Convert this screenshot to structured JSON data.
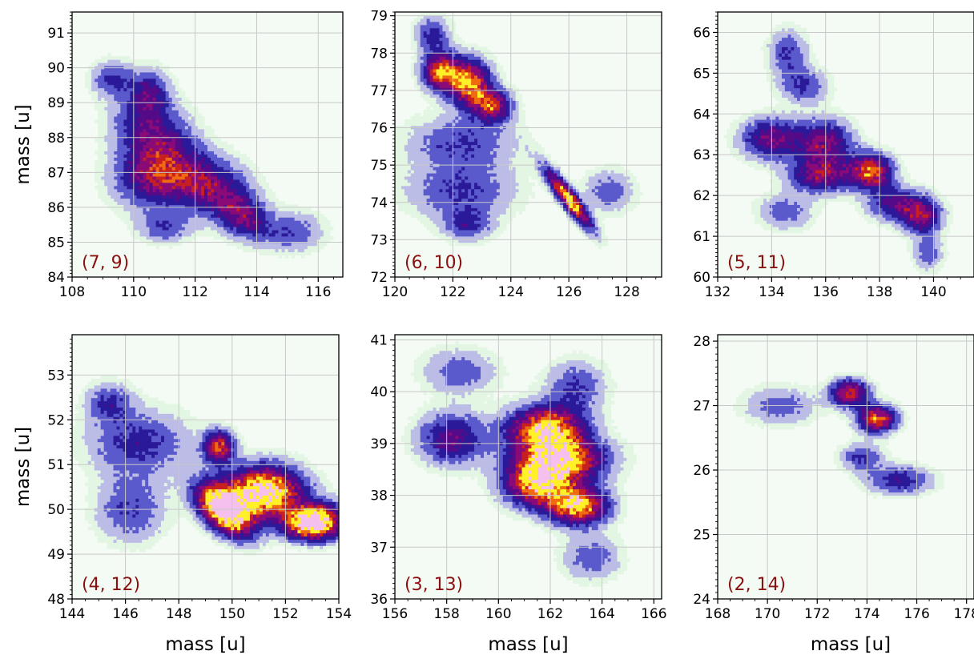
{
  "colors": {
    "panel_label": "#8b1010",
    "grid": "#c8c8c8",
    "background_haze": "#e6f7e6",
    "colormap": [
      "#e3f6e3",
      "#bcbde6",
      "#5a5acc",
      "#2a1a9a",
      "#550a88",
      "#8a0a78",
      "#c82020",
      "#f06a10",
      "#fff028",
      "#f5c0ee"
    ]
  },
  "chart_data": [
    {
      "type": "heatmap",
      "label": "(7, 9)",
      "xlabel": "",
      "ylabel": "mass [u]",
      "xlim": [
        108,
        116.8
      ],
      "ylim": [
        84,
        91.6
      ],
      "xticks": [
        108,
        110,
        112,
        114,
        116
      ],
      "yticks": [
        84,
        85,
        86,
        87,
        88,
        89,
        90,
        91
      ],
      "grid": true,
      "density_peaks": [
        {
          "x": 109.3,
          "y": 89.7,
          "sx": 0.45,
          "sy": 0.35,
          "a": 0.35,
          "rho": 0
        },
        {
          "x": 110.5,
          "y": 89.3,
          "sx": 0.45,
          "sy": 0.45,
          "a": 0.4,
          "rho": 0
        },
        {
          "x": 110.7,
          "y": 88.0,
          "sx": 0.9,
          "sy": 0.8,
          "a": 0.55,
          "rho": -0.3
        },
        {
          "x": 110.6,
          "y": 86.8,
          "sx": 0.9,
          "sy": 0.6,
          "a": 0.5,
          "rho": 0
        },
        {
          "x": 112.5,
          "y": 86.6,
          "sx": 0.9,
          "sy": 0.6,
          "a": 0.55,
          "rho": -0.2
        },
        {
          "x": 113.6,
          "y": 85.7,
          "sx": 0.6,
          "sy": 0.45,
          "a": 0.5,
          "rho": -0.3
        },
        {
          "x": 111.0,
          "y": 85.4,
          "sx": 0.6,
          "sy": 0.3,
          "a": 0.3,
          "rho": 0
        },
        {
          "x": 115.2,
          "y": 85.3,
          "sx": 0.7,
          "sy": 0.4,
          "a": 0.3,
          "rho": 0
        }
      ]
    },
    {
      "type": "heatmap",
      "label": "(6, 10)",
      "xlabel": "",
      "ylabel": "",
      "xlim": [
        120,
        129.2
      ],
      "ylim": [
        72,
        79.1
      ],
      "xticks": [
        120,
        122,
        124,
        126,
        128
      ],
      "yticks": [
        72,
        73,
        74,
        75,
        76,
        77,
        78,
        79
      ],
      "grid": true,
      "density_peaks": [
        {
          "x": 121.3,
          "y": 78.5,
          "sx": 0.4,
          "sy": 0.35,
          "a": 0.4,
          "rho": 0
        },
        {
          "x": 121.6,
          "y": 77.5,
          "sx": 0.45,
          "sy": 0.35,
          "a": 0.85,
          "rho": 0
        },
        {
          "x": 122.6,
          "y": 77.2,
          "sx": 0.5,
          "sy": 0.45,
          "a": 0.9,
          "rho": 0
        },
        {
          "x": 123.4,
          "y": 76.6,
          "sx": 0.45,
          "sy": 0.3,
          "a": 0.7,
          "rho": 0
        },
        {
          "x": 122.3,
          "y": 75.6,
          "sx": 1.3,
          "sy": 0.5,
          "a": 0.35,
          "rho": 0
        },
        {
          "x": 122.3,
          "y": 74.3,
          "sx": 1.3,
          "sy": 0.5,
          "a": 0.35,
          "rho": 0
        },
        {
          "x": 122.5,
          "y": 73.4,
          "sx": 0.6,
          "sy": 0.3,
          "a": 0.35,
          "rho": 0
        },
        {
          "x": 126.0,
          "y": 74.1,
          "sx": 0.55,
          "sy": 0.55,
          "a": 1.0,
          "rho": -0.9
        },
        {
          "x": 127.4,
          "y": 74.3,
          "sx": 0.6,
          "sy": 0.4,
          "a": 0.3,
          "rho": 0
        }
      ]
    },
    {
      "type": "heatmap",
      "label": "(5, 11)",
      "xlabel": "",
      "ylabel": "",
      "xlim": [
        132,
        141.5
      ],
      "ylim": [
        60,
        66.5
      ],
      "xticks": [
        132,
        134,
        136,
        138,
        140
      ],
      "yticks": [
        60,
        61,
        62,
        63,
        64,
        65,
        66
      ],
      "grid": true,
      "density_peaks": [
        {
          "x": 134.6,
          "y": 65.5,
          "sx": 0.5,
          "sy": 0.4,
          "a": 0.35,
          "rho": 0
        },
        {
          "x": 135.2,
          "y": 64.7,
          "sx": 0.6,
          "sy": 0.3,
          "a": 0.35,
          "rho": 0
        },
        {
          "x": 134.0,
          "y": 63.4,
          "sx": 0.8,
          "sy": 0.35,
          "a": 0.6,
          "rho": 0
        },
        {
          "x": 136.0,
          "y": 63.3,
          "sx": 0.7,
          "sy": 0.4,
          "a": 0.6,
          "rho": 0
        },
        {
          "x": 135.8,
          "y": 62.5,
          "sx": 0.8,
          "sy": 0.3,
          "a": 0.6,
          "rho": 0
        },
        {
          "x": 137.7,
          "y": 62.6,
          "sx": 0.55,
          "sy": 0.3,
          "a": 0.85,
          "rho": 0
        },
        {
          "x": 138.6,
          "y": 61.8,
          "sx": 0.7,
          "sy": 0.3,
          "a": 0.5,
          "rho": 0
        },
        {
          "x": 139.6,
          "y": 61.5,
          "sx": 0.5,
          "sy": 0.3,
          "a": 0.6,
          "rho": 0
        },
        {
          "x": 134.5,
          "y": 61.6,
          "sx": 0.7,
          "sy": 0.3,
          "a": 0.3,
          "rho": 0
        },
        {
          "x": 139.8,
          "y": 60.6,
          "sx": 0.4,
          "sy": 0.3,
          "a": 0.3,
          "rho": 0
        }
      ]
    },
    {
      "type": "heatmap",
      "label": "(4, 12)",
      "xlabel": "mass [u]",
      "ylabel": "mass [u]",
      "xlim": [
        144,
        154
      ],
      "ylim": [
        48,
        53.9
      ],
      "xticks": [
        144,
        146,
        148,
        150,
        152,
        154
      ],
      "yticks": [
        48,
        49,
        50,
        51,
        52,
        53
      ],
      "grid": true,
      "density_peaks": [
        {
          "x": 145.4,
          "y": 52.4,
          "sx": 0.6,
          "sy": 0.3,
          "a": 0.35,
          "rho": 0
        },
        {
          "x": 146.5,
          "y": 51.5,
          "sx": 1.3,
          "sy": 0.5,
          "a": 0.4,
          "rho": 0
        },
        {
          "x": 146.2,
          "y": 50.0,
          "sx": 0.9,
          "sy": 0.5,
          "a": 0.35,
          "rho": 0
        },
        {
          "x": 149.5,
          "y": 51.4,
          "sx": 0.4,
          "sy": 0.25,
          "a": 0.8,
          "rho": 0
        },
        {
          "x": 149.7,
          "y": 50.0,
          "sx": 0.7,
          "sy": 0.4,
          "a": 1.3,
          "rho": -0.5
        },
        {
          "x": 151.2,
          "y": 50.4,
          "sx": 1.0,
          "sy": 0.4,
          "a": 1.2,
          "rho": 0
        },
        {
          "x": 152.9,
          "y": 49.7,
          "sx": 0.7,
          "sy": 0.25,
          "a": 1.1,
          "rho": 0
        },
        {
          "x": 153.5,
          "y": 49.8,
          "sx": 0.6,
          "sy": 0.3,
          "a": 0.4,
          "rho": 0
        }
      ]
    },
    {
      "type": "heatmap",
      "label": "(3, 13)",
      "xlabel": "mass [u]",
      "ylabel": "",
      "xlim": [
        156,
        166.3
      ],
      "ylim": [
        36,
        41.1
      ],
      "xticks": [
        156,
        158,
        160,
        162,
        164,
        166
      ],
      "yticks": [
        36,
        37,
        38,
        39,
        40,
        41
      ],
      "grid": true,
      "density_peaks": [
        {
          "x": 158.5,
          "y": 40.4,
          "sx": 1.0,
          "sy": 0.3,
          "a": 0.3,
          "rho": 0
        },
        {
          "x": 158.2,
          "y": 39.1,
          "sx": 0.9,
          "sy": 0.35,
          "a": 0.55,
          "rho": 0
        },
        {
          "x": 161.8,
          "y": 39.3,
          "sx": 1.0,
          "sy": 0.3,
          "a": 1.0,
          "rho": 0
        },
        {
          "x": 162.4,
          "y": 38.7,
          "sx": 1.2,
          "sy": 0.3,
          "a": 1.0,
          "rho": 0
        },
        {
          "x": 161.5,
          "y": 38.2,
          "sx": 0.9,
          "sy": 0.3,
          "a": 0.9,
          "rho": 0
        },
        {
          "x": 163.1,
          "y": 37.8,
          "sx": 0.8,
          "sy": 0.25,
          "a": 1.0,
          "rho": 0
        },
        {
          "x": 163.0,
          "y": 40.1,
          "sx": 0.8,
          "sy": 0.35,
          "a": 0.35,
          "rho": 0
        },
        {
          "x": 163.6,
          "y": 36.8,
          "sx": 0.8,
          "sy": 0.3,
          "a": 0.3,
          "rho": 0
        }
      ]
    },
    {
      "type": "heatmap",
      "label": "(2, 14)",
      "xlabel": "mass [u]",
      "ylabel": "",
      "xlim": [
        168,
        178.3
      ],
      "ylim": [
        24,
        28.1
      ],
      "xticks": [
        168,
        170,
        172,
        174,
        176,
        178
      ],
      "yticks": [
        24,
        25,
        26,
        27,
        28
      ],
      "grid": true,
      "density_peaks": [
        {
          "x": 170.5,
          "y": 27.0,
          "sx": 1.0,
          "sy": 0.2,
          "a": 0.3,
          "rho": 0
        },
        {
          "x": 173.3,
          "y": 27.2,
          "sx": 0.55,
          "sy": 0.15,
          "a": 0.75,
          "rho": 0
        },
        {
          "x": 174.4,
          "y": 26.8,
          "sx": 0.55,
          "sy": 0.15,
          "a": 0.85,
          "rho": 0
        },
        {
          "x": 173.8,
          "y": 26.2,
          "sx": 0.6,
          "sy": 0.15,
          "a": 0.35,
          "rho": 0
        },
        {
          "x": 175.3,
          "y": 25.85,
          "sx": 0.9,
          "sy": 0.15,
          "a": 0.45,
          "rho": 0
        }
      ]
    }
  ]
}
